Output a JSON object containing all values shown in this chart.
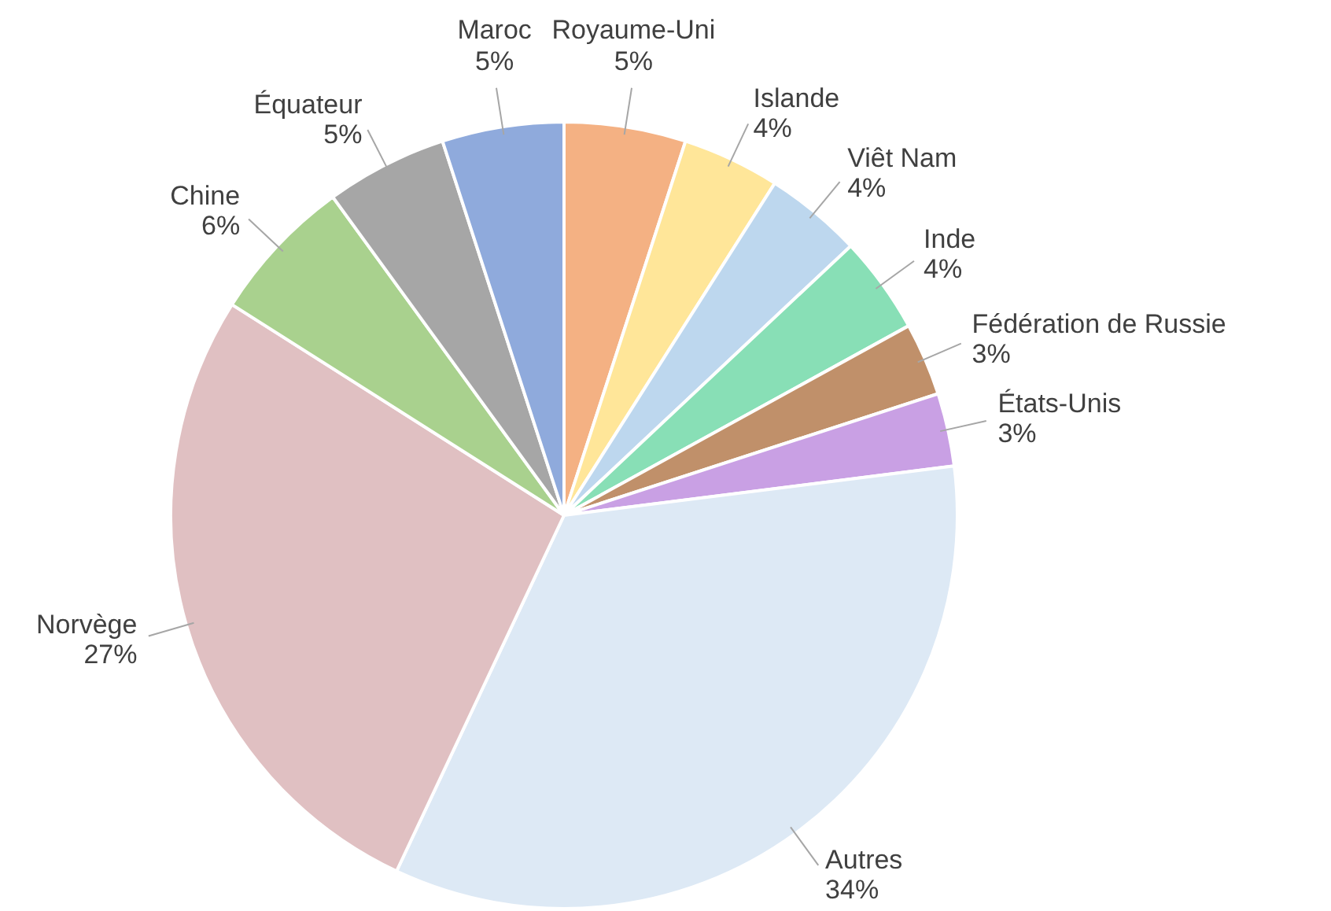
{
  "chart_data": {
    "type": "pie",
    "categories": [
      "Royaume-Uni",
      "Islande",
      "Viêt Nam",
      "Inde",
      "Fédération de Russie",
      "États-Unis",
      "Autres",
      "Norvège",
      "Chine",
      "Équateur",
      "Maroc"
    ],
    "values": [
      5,
      4,
      4,
      4,
      3,
      3,
      34,
      27,
      6,
      5,
      5
    ],
    "colors": [
      "#f4b183",
      "#ffe699",
      "#bdd7ee",
      "#88dfb6",
      "#c0906a",
      "#c9a0e4",
      "#dde9f5",
      "#e0c0c2",
      "#a9d18e",
      "#a6a6a6",
      "#8faadc"
    ],
    "value_labels": [
      "5%",
      "4%",
      "4%",
      "4%",
      "3%",
      "3%",
      "34%",
      "27%",
      "6%",
      "5%",
      "5%"
    ]
  }
}
